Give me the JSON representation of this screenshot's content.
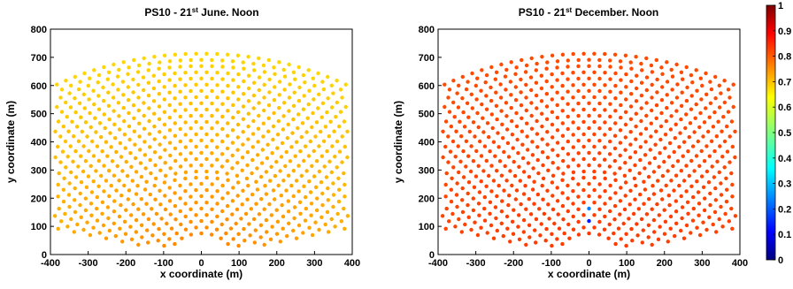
{
  "chart_data": [
    {
      "type": "scatter",
      "title_prefix": "PS10 - 21",
      "title_sup": "st",
      "title_suffix": " June. Noon",
      "xlabel": "x coordinate (m)",
      "ylabel": "y coordinate (m)",
      "xlim": [
        -400,
        400
      ],
      "ylim": [
        0,
        800
      ],
      "xticks": [
        -400,
        -300,
        -200,
        -100,
        0,
        100,
        200,
        300,
        400
      ],
      "yticks": [
        0,
        100,
        200,
        300,
        400,
        500,
        600,
        700,
        800
      ],
      "layout": {
        "inner_radius": 85,
        "ring_spacing": 22,
        "num_rings": 30,
        "half_span_degrees": 75,
        "point_spacing": 28,
        "center_x": 0,
        "center_y": -10
      },
      "efficiency_model": {
        "near_value": 0.75,
        "far_value": 0.66,
        "low_columns": []
      }
    },
    {
      "type": "scatter",
      "title_prefix": "PS10 - 21",
      "title_sup": "st",
      "title_suffix": " December. Noon",
      "xlabel": "x coordinate (m)",
      "ylabel": "y coordinate (m)",
      "xlim": [
        -400,
        400
      ],
      "ylim": [
        0,
        800
      ],
      "xticks": [
        -400,
        -300,
        -200,
        -100,
        0,
        100,
        200,
        300,
        400
      ],
      "yticks": [
        0,
        100,
        200,
        300,
        400,
        500,
        600,
        700,
        800
      ],
      "layout": {
        "inner_radius": 85,
        "ring_spacing": 22,
        "num_rings": 30,
        "half_span_degrees": 75,
        "point_spacing": 28,
        "center_x": 0,
        "center_y": -10
      },
      "efficiency_model": {
        "near_value": 0.82,
        "far_value": 0.8,
        "low_column_x": 0,
        "low_column_y_range": [
          80,
          200
        ],
        "low_values": [
          0.1,
          0.15,
          0.2,
          0.25,
          0.3
        ]
      }
    }
  ],
  "colorbar": {
    "min": 0,
    "max": 1,
    "tick_labels": [
      "0",
      "0.1",
      "0.2",
      "0.3",
      "0.4",
      "0.5",
      "0.6",
      "0.7",
      "0.8",
      "0.9",
      "1"
    ],
    "colormap": "jet"
  }
}
